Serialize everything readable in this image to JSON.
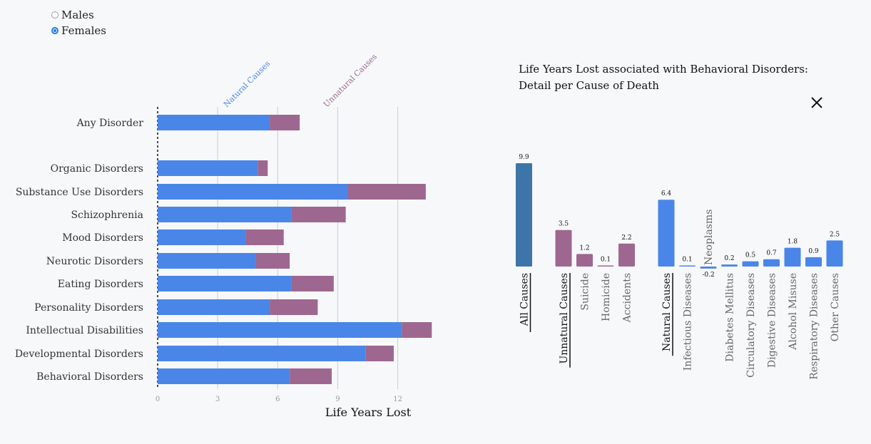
{
  "sex_selector": {
    "options": [
      {
        "label": "Males",
        "selected": false
      },
      {
        "label": "Females",
        "selected": true
      }
    ]
  },
  "colors": {
    "natural": "#4a86e8",
    "unnatural": "#9e6790",
    "all_causes": "#3d75a8",
    "grid": "#cccccc"
  },
  "detail": {
    "title_line1": "Life Years Lost associated with Behavioral Disorders:",
    "title_line2": "Detail per Cause of Death",
    "close_icon": "close-icon"
  },
  "chart_data": [
    {
      "type": "bar",
      "orientation": "horizontal",
      "stacked": true,
      "title": "",
      "xlabel": "Life Years Lost",
      "xlim": [
        0,
        14
      ],
      "xticks": [
        0,
        3,
        6,
        9,
        12
      ],
      "grid": true,
      "series_labels": [
        "Natural Causes",
        "Unnatural Causes"
      ],
      "categories": [
        "Any Disorder",
        "Organic Disorders",
        "Substance Use Disorders",
        "Schizophrenia",
        "Mood Disorders",
        "Neurotic Disorders",
        "Eating Disorders",
        "Personality Disorders",
        "Intellectual Disabilities",
        "Developmental Disorders",
        "Behavioral Disorders"
      ],
      "series": [
        {
          "name": "Natural Causes",
          "values": [
            5.6,
            5.0,
            9.5,
            6.7,
            4.4,
            4.9,
            6.7,
            5.6,
            12.2,
            10.4,
            6.6
          ]
        },
        {
          "name": "Unnatural Causes",
          "values": [
            1.5,
            0.5,
            3.9,
            2.7,
            1.9,
            1.7,
            2.1,
            2.4,
            1.5,
            1.4,
            2.1
          ]
        }
      ]
    },
    {
      "type": "bar",
      "orientation": "vertical",
      "title": "",
      "groups": [
        {
          "items": [
            {
              "label": "All Causes",
              "value": 9.9,
              "value_label": "9.9",
              "header": true,
              "color": "all"
            }
          ]
        },
        {
          "items": [
            {
              "label": "Unnatural Causes",
              "value": 3.5,
              "value_label": "3.5",
              "header": true,
              "color": "unnatural"
            },
            {
              "label": "Suicide",
              "value": 1.2,
              "value_label": "1.2",
              "header": false,
              "color": "unnatural"
            },
            {
              "label": "Homicide",
              "value": 0.1,
              "value_label": "0.1",
              "header": false,
              "color": "unnatural"
            },
            {
              "label": "Accidents",
              "value": 2.2,
              "value_label": "2.2",
              "header": false,
              "color": "unnatural"
            }
          ]
        },
        {
          "items": [
            {
              "label": "Natural Causes",
              "value": 6.4,
              "value_label": "6.4",
              "header": true,
              "color": "natural"
            },
            {
              "label": "Infectious Diseases",
              "value": 0.1,
              "value_label": "0.1",
              "header": false,
              "color": "natural"
            },
            {
              "label": "Neoplasms",
              "value": -0.2,
              "value_label": "-0.2",
              "header": false,
              "color": "natural"
            },
            {
              "label": "Diabetes Mellitus",
              "value": 0.2,
              "value_label": "0.2",
              "header": false,
              "color": "natural"
            },
            {
              "label": "Circulatory Diseases",
              "value": 0.5,
              "value_label": "0.5",
              "header": false,
              "color": "natural"
            },
            {
              "label": "Digestive Diseases",
              "value": 0.7,
              "value_label": "0.7",
              "header": false,
              "color": "natural"
            },
            {
              "label": "Alcohol Misuse",
              "value": 1.8,
              "value_label": "1.8",
              "header": false,
              "color": "natural"
            },
            {
              "label": "Respiratory Diseases",
              "value": 0.9,
              "value_label": "0.9",
              "header": false,
              "color": "natural"
            },
            {
              "label": "Other Causes",
              "value": 2.5,
              "value_label": "2.5",
              "header": false,
              "color": "natural"
            }
          ]
        }
      ]
    }
  ]
}
